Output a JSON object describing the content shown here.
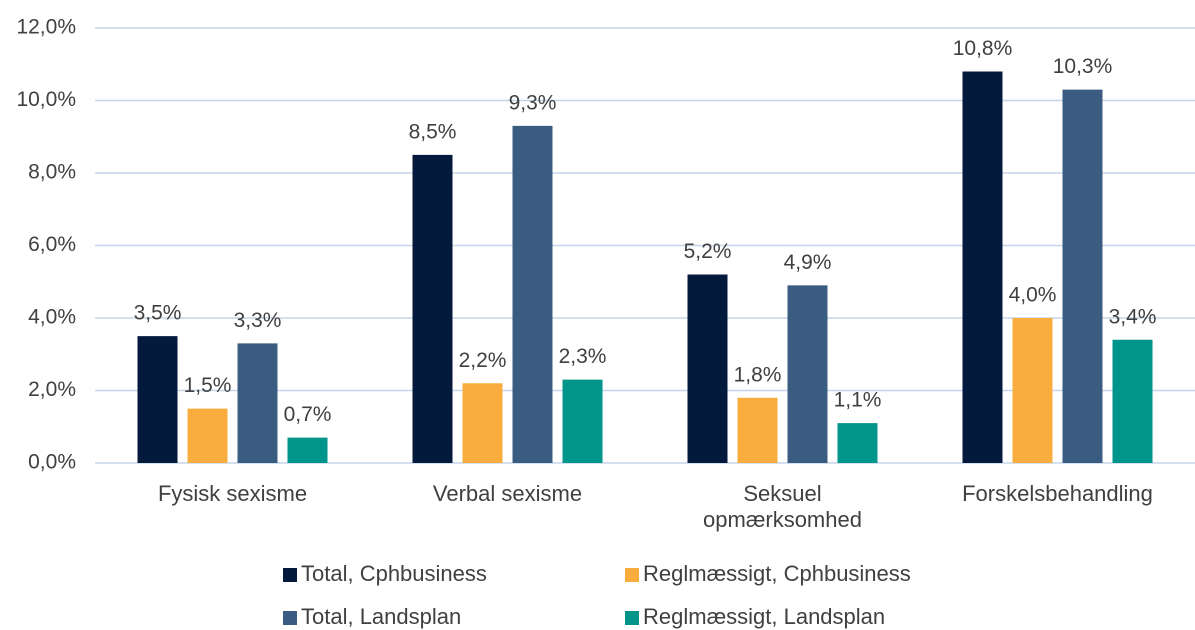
{
  "chart_data": {
    "type": "bar",
    "categories": [
      "Fysisk sexisme",
      "Verbal sexisme",
      "Seksuel\nopmærksomhed",
      "Forskelsbehandling"
    ],
    "series": [
      {
        "name": "Total, Cphbusiness",
        "color": "#041a3d",
        "values": [
          3.5,
          8.5,
          5.2,
          10.8
        ],
        "value_labels": [
          "3,5%",
          "8,5%",
          "5,2%",
          "10,8%"
        ]
      },
      {
        "name": "Reglmæssigt, Cphbusiness",
        "color": "#f9ad3f",
        "values": [
          1.5,
          2.2,
          1.8,
          4.0
        ],
        "value_labels": [
          "1,5%",
          "2,2%",
          "1,8%",
          "4,0%"
        ]
      },
      {
        "name": "Total, Landsplan",
        "color": "#3a5c80",
        "values": [
          3.3,
          9.3,
          4.9,
          10.3
        ],
        "value_labels": [
          "3,3%",
          "9,3%",
          "4,9%",
          "10,3%"
        ]
      },
      {
        "name": "Reglmæssigt, Landsplan",
        "color": "#00958a",
        "values": [
          0.7,
          2.3,
          1.1,
          3.4
        ],
        "value_labels": [
          "0,7%",
          "2,3%",
          "1,1%",
          "3,4%"
        ]
      }
    ],
    "ylim": [
      0,
      12
    ],
    "yticks": [
      {
        "value": 0,
        "label": "0,0%"
      },
      {
        "value": 2,
        "label": "2,0%"
      },
      {
        "value": 4,
        "label": "4,0%"
      },
      {
        "value": 6,
        "label": "6,0%"
      },
      {
        "value": 8,
        "label": "8,0%"
      },
      {
        "value": 10,
        "label": "10,0%"
      },
      {
        "value": 12,
        "label": "12,0%"
      }
    ],
    "grid": true,
    "legend": "bottom"
  }
}
